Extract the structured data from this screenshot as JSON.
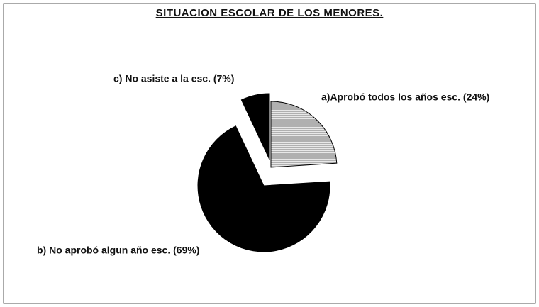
{
  "chart_data": {
    "type": "pie",
    "title": "SITUACION ESCOLAR DE LOS MENORES.",
    "categories": [
      "a)Aprobó todos los años esc. (24%)",
      "b) No aprobó algun año esc. (69%)",
      "c) No asiste a la esc. (7%)"
    ],
    "values": [
      24,
      69,
      7
    ],
    "colors": [
      "#8a8a8a",
      "#000000",
      "#000000"
    ]
  }
}
